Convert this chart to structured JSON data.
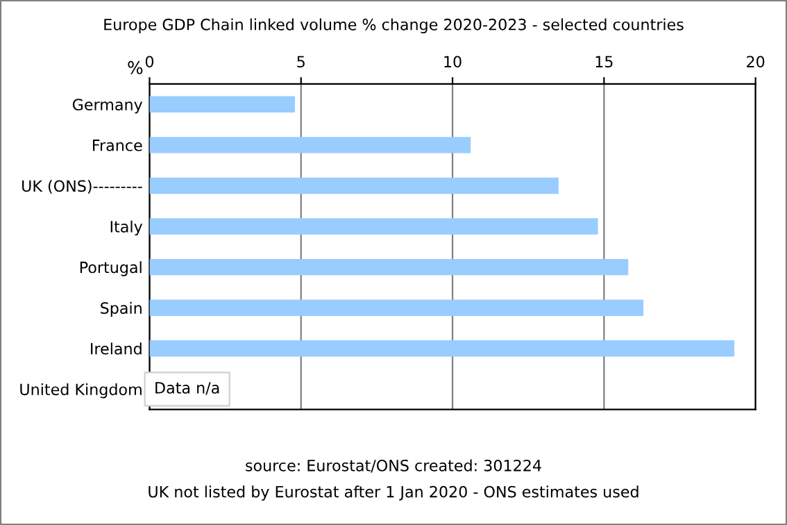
{
  "chart_data": {
    "type": "bar",
    "orientation": "horizontal",
    "title": "Europe GDP Chain linked volume % change 2020-2023 - selected countries",
    "xlabel": "%",
    "categories": [
      "Germany",
      "France",
      "UK (ONS)---------",
      "Italy",
      "Portugal",
      "Spain",
      "Ireland",
      "United Kingdom"
    ],
    "values": [
      4.8,
      10.6,
      13.5,
      14.8,
      15.8,
      16.3,
      19.3,
      null
    ],
    "color": "#99ccff",
    "xlim": [
      0,
      20
    ],
    "xticks": [
      0,
      5,
      10,
      15,
      20
    ],
    "grid": "x",
    "annotations": [
      "Data n/a",
      "source: Eurostat/ONS created: 301224",
      "UK not listed by Eurostat after 1 Jan 2020 - ONS estimates used"
    ]
  }
}
